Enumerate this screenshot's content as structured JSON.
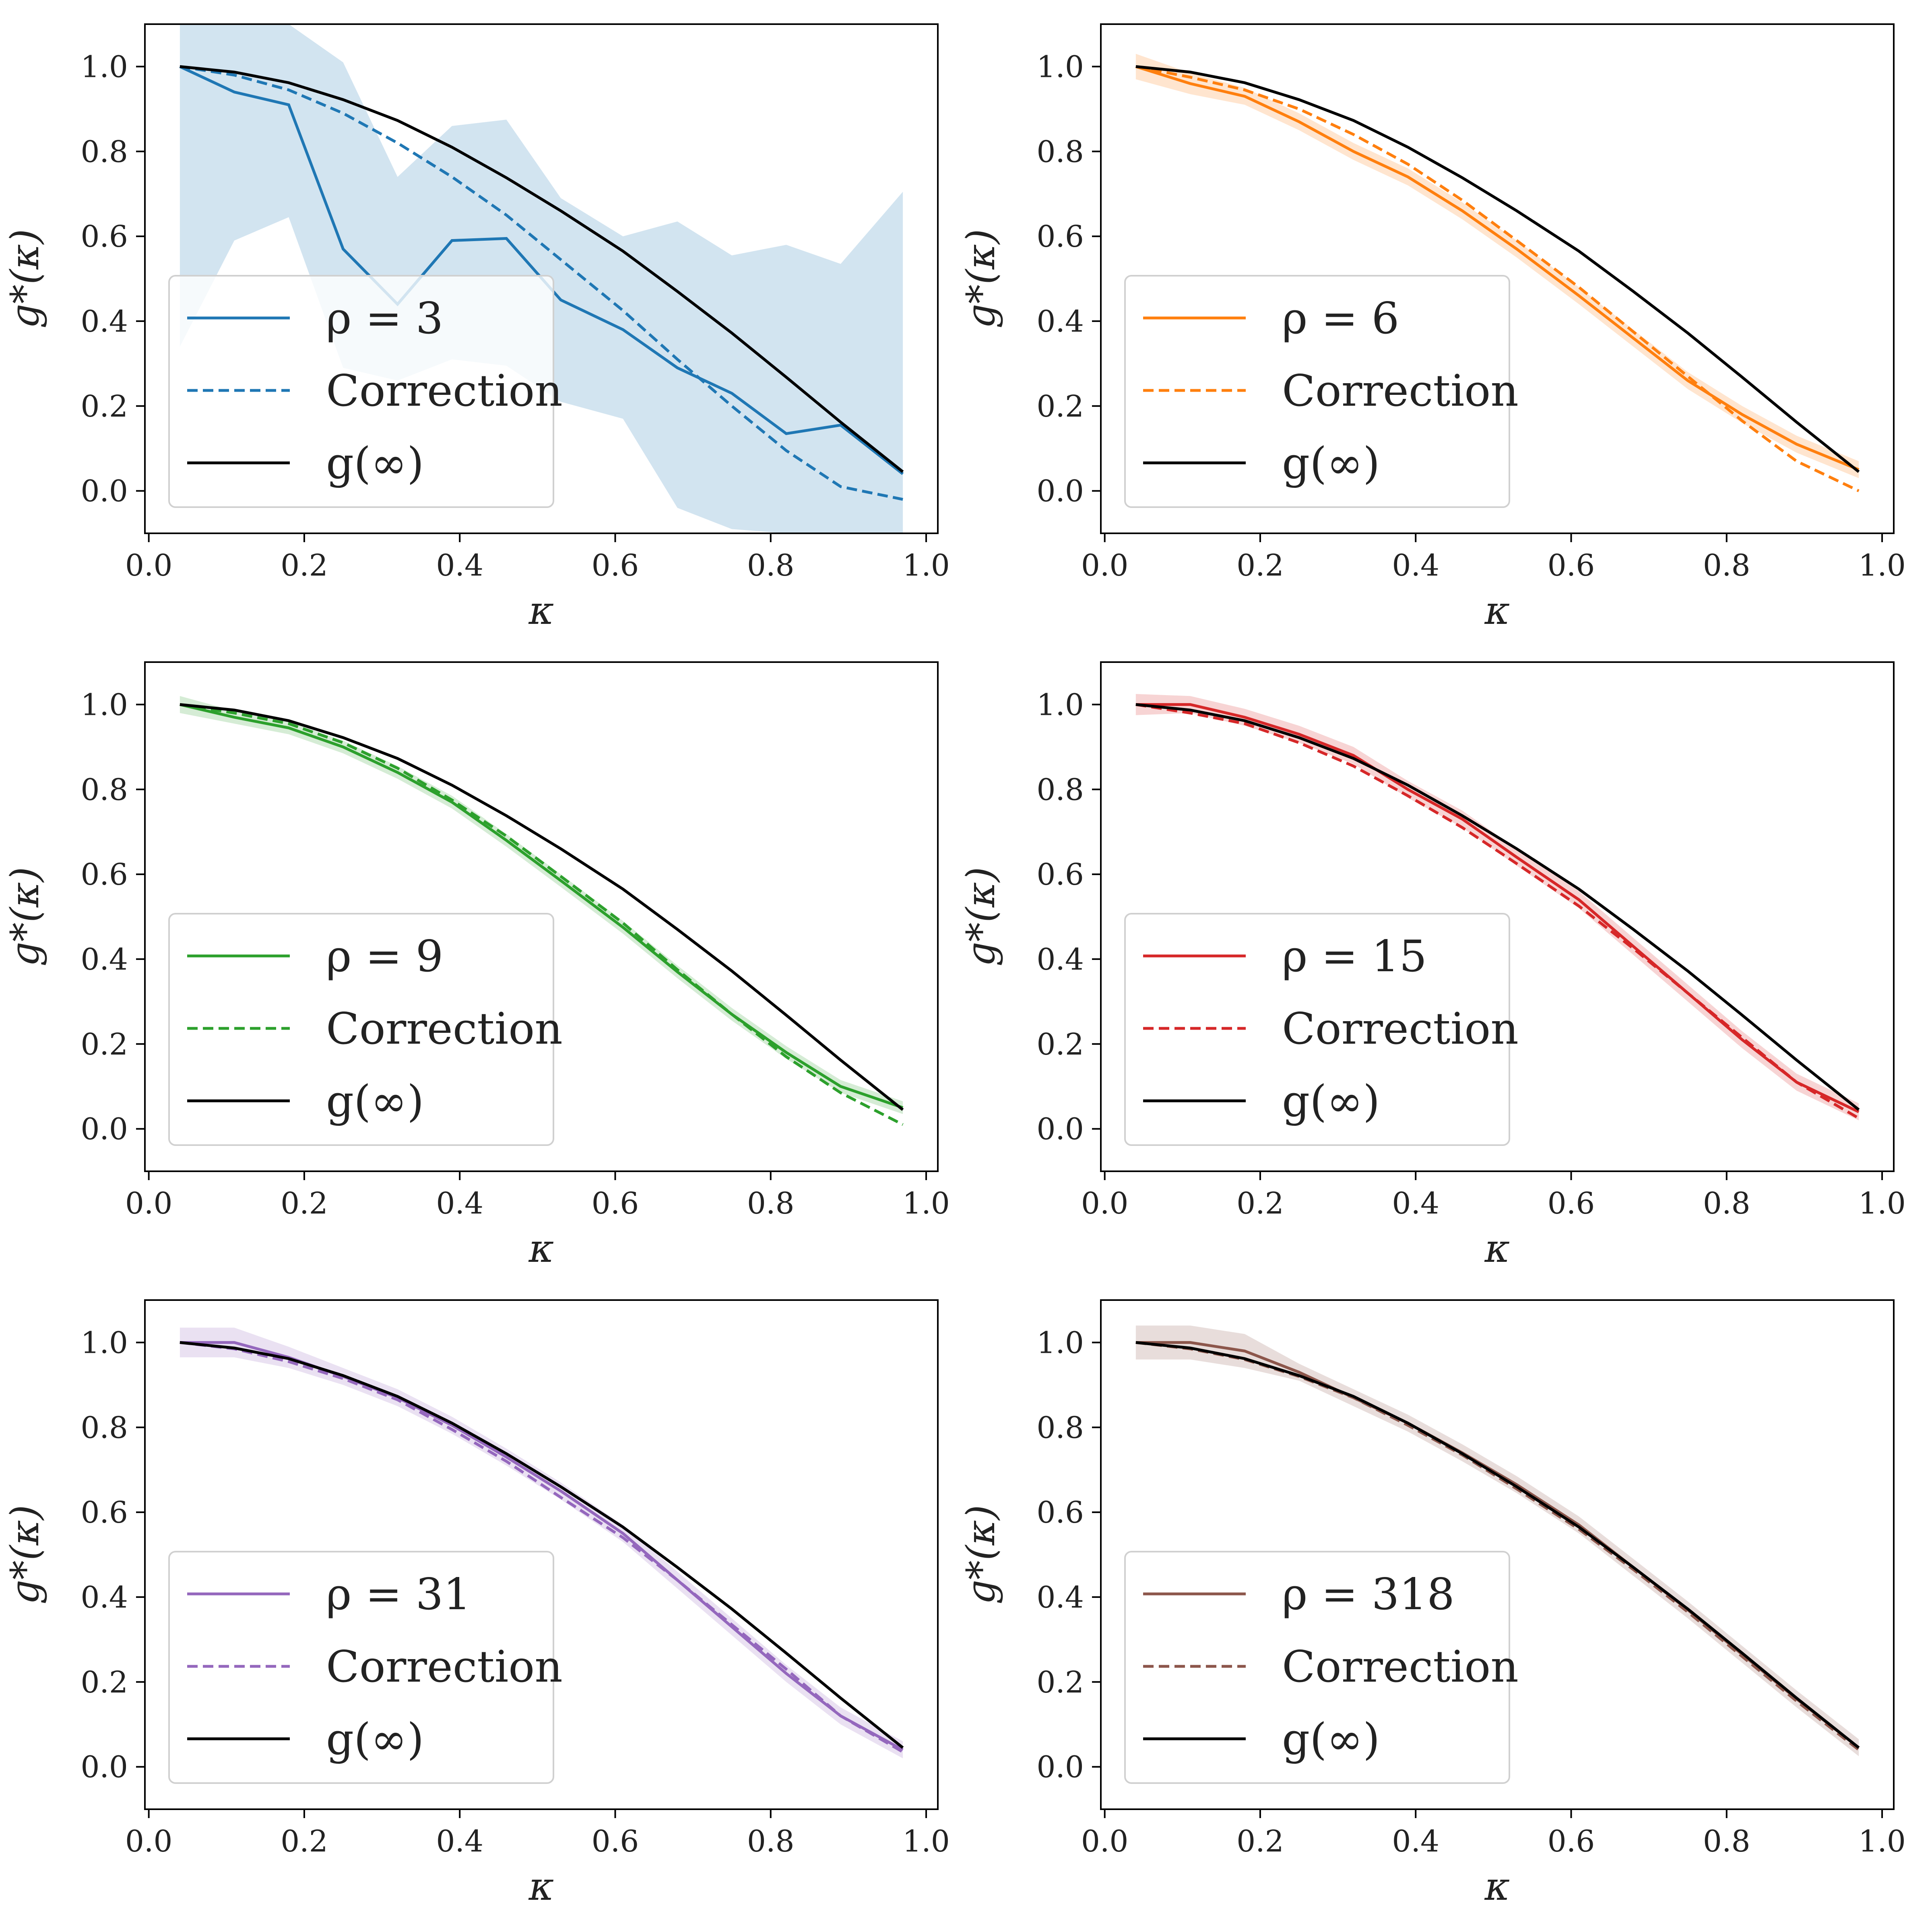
{
  "figure": {
    "layout": "3 rows x 2 columns",
    "reference_color": "#000000"
  },
  "chart_data": [
    {
      "type": "line",
      "series_label": "ρ = 3",
      "correction_label": "Correction",
      "reference_label": "g(∞)",
      "color": "#1f77b4",
      "band_color": "#1f77b4",
      "xlabel": "κ",
      "ylabel": "g*(κ)",
      "xlim": [
        -0.005,
        1.015
      ],
      "ylim": [
        -0.1,
        1.1
      ],
      "xticks": [
        "0.0",
        "0.2",
        "0.4",
        "0.6",
        "0.8",
        "1.0"
      ],
      "yticks": [
        "0.0",
        "0.2",
        "0.4",
        "0.6",
        "0.8",
        "1.0"
      ],
      "x": [
        0.04,
        0.11,
        0.18,
        0.25,
        0.32,
        0.39,
        0.46,
        0.53,
        0.61,
        0.68,
        0.75,
        0.82,
        0.89,
        0.97
      ],
      "empirical": [
        1.0,
        0.94,
        0.91,
        0.57,
        0.44,
        0.59,
        0.595,
        0.45,
        0.38,
        0.29,
        0.23,
        0.135,
        0.155,
        0.04
      ],
      "band_upper": [
        1.1,
        1.1,
        1.1,
        1.01,
        0.74,
        0.86,
        0.875,
        0.69,
        0.6,
        0.635,
        0.555,
        0.58,
        0.535,
        0.705
      ],
      "band_lower": [
        0.34,
        0.59,
        0.645,
        0.29,
        0.26,
        0.31,
        0.295,
        0.21,
        0.17,
        -0.04,
        -0.09,
        -0.1,
        -0.1,
        -0.1
      ],
      "correction": [
        1.0,
        0.98,
        0.945,
        0.89,
        0.82,
        0.74,
        0.65,
        0.545,
        0.425,
        0.31,
        0.2,
        0.095,
        0.01,
        -0.02
      ],
      "reference": [
        1.0,
        0.987,
        0.962,
        0.922,
        0.873,
        0.81,
        0.738,
        0.66,
        0.565,
        0.47,
        0.372,
        0.268,
        0.162,
        0.045
      ]
    },
    {
      "type": "line",
      "series_label": "ρ = 6",
      "correction_label": "Correction",
      "reference_label": "g(∞)",
      "color": "#ff7f0e",
      "band_color": "#ff7f0e",
      "xlabel": "κ",
      "ylabel": "g*(κ)",
      "xlim": [
        -0.005,
        1.015
      ],
      "ylim": [
        -0.1,
        1.1
      ],
      "xticks": [
        "0.0",
        "0.2",
        "0.4",
        "0.6",
        "0.8",
        "1.0"
      ],
      "yticks": [
        "0.0",
        "0.2",
        "0.4",
        "0.6",
        "0.8",
        "1.0"
      ],
      "x": [
        0.04,
        0.11,
        0.18,
        0.25,
        0.32,
        0.39,
        0.46,
        0.53,
        0.61,
        0.68,
        0.75,
        0.82,
        0.89,
        0.97
      ],
      "empirical": [
        1.0,
        0.96,
        0.93,
        0.87,
        0.8,
        0.74,
        0.66,
        0.57,
        0.46,
        0.36,
        0.26,
        0.18,
        0.11,
        0.05
      ],
      "band_upper": [
        1.03,
        0.985,
        0.95,
        0.89,
        0.82,
        0.76,
        0.68,
        0.59,
        0.48,
        0.38,
        0.28,
        0.2,
        0.13,
        0.07
      ],
      "band_lower": [
        0.97,
        0.935,
        0.91,
        0.85,
        0.78,
        0.72,
        0.64,
        0.55,
        0.44,
        0.34,
        0.24,
        0.16,
        0.09,
        0.03
      ],
      "correction": [
        1.0,
        0.975,
        0.945,
        0.9,
        0.84,
        0.77,
        0.685,
        0.59,
        0.48,
        0.375,
        0.27,
        0.165,
        0.07,
        0.0
      ],
      "reference": [
        1.0,
        0.987,
        0.962,
        0.922,
        0.873,
        0.81,
        0.738,
        0.66,
        0.565,
        0.47,
        0.372,
        0.268,
        0.162,
        0.045
      ]
    },
    {
      "type": "line",
      "series_label": "ρ = 9",
      "correction_label": "Correction",
      "reference_label": "g(∞)",
      "color": "#2ca02c",
      "band_color": "#2ca02c",
      "xlabel": "κ",
      "ylabel": "g*(κ)",
      "xlim": [
        -0.005,
        1.015
      ],
      "ylim": [
        -0.1,
        1.1
      ],
      "xticks": [
        "0.0",
        "0.2",
        "0.4",
        "0.6",
        "0.8",
        "1.0"
      ],
      "yticks": [
        "0.0",
        "0.2",
        "0.4",
        "0.6",
        "0.8",
        "1.0"
      ],
      "x": [
        0.04,
        0.11,
        0.18,
        0.25,
        0.32,
        0.39,
        0.46,
        0.53,
        0.61,
        0.68,
        0.75,
        0.82,
        0.89,
        0.97
      ],
      "empirical": [
        1.0,
        0.97,
        0.945,
        0.9,
        0.84,
        0.77,
        0.68,
        0.585,
        0.475,
        0.37,
        0.27,
        0.18,
        0.1,
        0.05
      ],
      "band_upper": [
        1.02,
        0.985,
        0.96,
        0.915,
        0.855,
        0.785,
        0.695,
        0.6,
        0.49,
        0.385,
        0.285,
        0.195,
        0.115,
        0.065
      ],
      "band_lower": [
        0.98,
        0.955,
        0.93,
        0.885,
        0.825,
        0.755,
        0.665,
        0.57,
        0.46,
        0.355,
        0.255,
        0.165,
        0.085,
        0.035
      ],
      "correction": [
        1.0,
        0.98,
        0.955,
        0.91,
        0.85,
        0.775,
        0.69,
        0.595,
        0.485,
        0.375,
        0.27,
        0.17,
        0.085,
        0.01
      ],
      "reference": [
        1.0,
        0.987,
        0.962,
        0.922,
        0.873,
        0.81,
        0.738,
        0.66,
        0.565,
        0.47,
        0.372,
        0.268,
        0.162,
        0.045
      ]
    },
    {
      "type": "line",
      "series_label": "ρ = 15",
      "correction_label": "Correction",
      "reference_label": "g(∞)",
      "color": "#d62728",
      "band_color": "#d62728",
      "xlabel": "κ",
      "ylabel": "g*(κ)",
      "xlim": [
        -0.005,
        1.015
      ],
      "ylim": [
        -0.1,
        1.1
      ],
      "xticks": [
        "0.0",
        "0.2",
        "0.4",
        "0.6",
        "0.8",
        "1.0"
      ],
      "yticks": [
        "0.0",
        "0.2",
        "0.4",
        "0.6",
        "0.8",
        "1.0"
      ],
      "x": [
        0.04,
        0.11,
        0.18,
        0.25,
        0.32,
        0.39,
        0.46,
        0.53,
        0.61,
        0.68,
        0.75,
        0.82,
        0.89,
        0.97
      ],
      "empirical": [
        1.0,
        1.0,
        0.97,
        0.93,
        0.88,
        0.8,
        0.73,
        0.64,
        0.54,
        0.43,
        0.32,
        0.21,
        0.11,
        0.04
      ],
      "band_upper": [
        1.025,
        1.02,
        0.99,
        0.95,
        0.9,
        0.82,
        0.75,
        0.66,
        0.56,
        0.45,
        0.34,
        0.23,
        0.13,
        0.06
      ],
      "band_lower": [
        0.975,
        0.98,
        0.95,
        0.91,
        0.86,
        0.78,
        0.71,
        0.62,
        0.52,
        0.41,
        0.3,
        0.19,
        0.09,
        0.02
      ],
      "correction": [
        1.0,
        0.98,
        0.955,
        0.91,
        0.855,
        0.785,
        0.71,
        0.625,
        0.525,
        0.425,
        0.32,
        0.215,
        0.11,
        0.025
      ],
      "reference": [
        1.0,
        0.987,
        0.962,
        0.922,
        0.873,
        0.81,
        0.738,
        0.66,
        0.565,
        0.47,
        0.372,
        0.268,
        0.162,
        0.045
      ]
    },
    {
      "type": "line",
      "series_label": "ρ = 31",
      "correction_label": "Correction",
      "reference_label": "g(∞)",
      "color": "#9467bd",
      "band_color": "#9467bd",
      "xlabel": "κ",
      "ylabel": "g*(κ)",
      "xlim": [
        -0.005,
        1.015
      ],
      "ylim": [
        -0.1,
        1.1
      ],
      "xticks": [
        "0.0",
        "0.2",
        "0.4",
        "0.6",
        "0.8",
        "1.0"
      ],
      "yticks": [
        "0.0",
        "0.2",
        "0.4",
        "0.6",
        "0.8",
        "1.0"
      ],
      "x": [
        0.04,
        0.11,
        0.18,
        0.25,
        0.32,
        0.39,
        0.46,
        0.53,
        0.61,
        0.68,
        0.75,
        0.82,
        0.89,
        0.97
      ],
      "empirical": [
        1.0,
        1.0,
        0.965,
        0.92,
        0.87,
        0.805,
        0.73,
        0.65,
        0.55,
        0.44,
        0.33,
        0.22,
        0.12,
        0.04
      ],
      "band_upper": [
        1.035,
        1.035,
        0.99,
        0.94,
        0.89,
        0.825,
        0.75,
        0.67,
        0.57,
        0.46,
        0.35,
        0.24,
        0.14,
        0.06
      ],
      "band_lower": [
        0.965,
        0.965,
        0.94,
        0.9,
        0.85,
        0.785,
        0.71,
        0.63,
        0.53,
        0.42,
        0.31,
        0.2,
        0.1,
        0.02
      ],
      "correction": [
        1.0,
        0.985,
        0.955,
        0.915,
        0.865,
        0.795,
        0.72,
        0.635,
        0.54,
        0.44,
        0.335,
        0.23,
        0.12,
        0.035
      ],
      "reference": [
        1.0,
        0.987,
        0.962,
        0.922,
        0.873,
        0.81,
        0.738,
        0.66,
        0.565,
        0.47,
        0.372,
        0.268,
        0.162,
        0.045
      ]
    },
    {
      "type": "line",
      "series_label": "ρ = 318",
      "correction_label": "Correction",
      "reference_label": "g(∞)",
      "color": "#8c564b",
      "band_color": "#8c564b",
      "xlabel": "κ",
      "ylabel": "g*(κ)",
      "xlim": [
        -0.005,
        1.015
      ],
      "ylim": [
        -0.1,
        1.1
      ],
      "xticks": [
        "0.0",
        "0.2",
        "0.4",
        "0.6",
        "0.8",
        "1.0"
      ],
      "yticks": [
        "0.0",
        "0.2",
        "0.4",
        "0.6",
        "0.8",
        "1.0"
      ],
      "x": [
        0.04,
        0.11,
        0.18,
        0.25,
        0.32,
        0.39,
        0.46,
        0.53,
        0.61,
        0.68,
        0.75,
        0.82,
        0.89,
        0.97
      ],
      "empirical": [
        1.0,
        1.0,
        0.98,
        0.93,
        0.87,
        0.81,
        0.74,
        0.665,
        0.57,
        0.47,
        0.37,
        0.265,
        0.16,
        0.045
      ],
      "band_upper": [
        1.04,
        1.04,
        1.02,
        0.95,
        0.89,
        0.83,
        0.76,
        0.685,
        0.59,
        0.49,
        0.39,
        0.285,
        0.18,
        0.065
      ],
      "band_lower": [
        0.96,
        0.96,
        0.94,
        0.91,
        0.85,
        0.79,
        0.72,
        0.645,
        0.55,
        0.45,
        0.35,
        0.245,
        0.14,
        0.025
      ],
      "correction": [
        1.0,
        0.985,
        0.96,
        0.92,
        0.87,
        0.805,
        0.735,
        0.655,
        0.56,
        0.465,
        0.365,
        0.26,
        0.155,
        0.04
      ],
      "reference": [
        1.0,
        0.987,
        0.962,
        0.922,
        0.873,
        0.81,
        0.738,
        0.66,
        0.565,
        0.47,
        0.372,
        0.268,
        0.162,
        0.045
      ]
    }
  ]
}
